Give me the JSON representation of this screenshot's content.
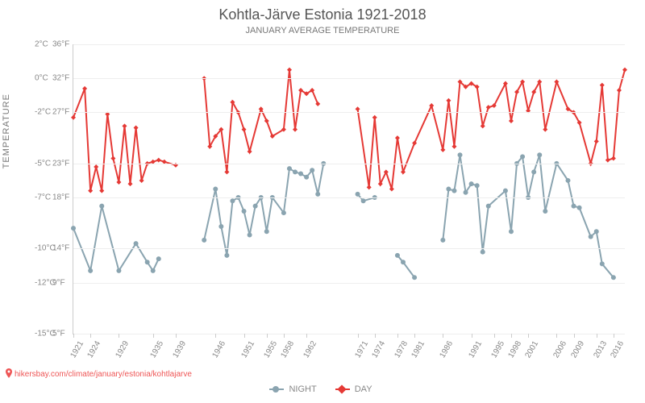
{
  "title": "Kohtla-Järve Estonia 1921-2018",
  "subtitle": "JANUARY AVERAGE TEMPERATURE",
  "y_axis_label": "TEMPERATURE",
  "footer_url": "hikersbay.com/climate/january/estonia/kohtlajarve",
  "colors": {
    "day": "#e53935",
    "night": "#8aa4b0",
    "grid": "#eeeeee",
    "axis": "#cccccc",
    "text": "#888888"
  },
  "y_axis": {
    "min_c": -15,
    "max_c": 2,
    "ticks": [
      {
        "c": "2°C",
        "f": "36°F",
        "val": 2
      },
      {
        "c": "0°C",
        "f": "32°F",
        "val": 0
      },
      {
        "c": "-2°C",
        "f": "27°F",
        "val": -2
      },
      {
        "c": "-5°C",
        "f": "23°F",
        "val": -5
      },
      {
        "c": "-7°C",
        "f": "18°F",
        "val": -7
      },
      {
        "c": "-10°C",
        "f": "14°F",
        "val": -10
      },
      {
        "c": "-12°C",
        "f": "9°F",
        "val": -12
      },
      {
        "c": "-15°C",
        "f": "5°F",
        "val": -15
      }
    ]
  },
  "x_axis": {
    "min_year": 1921,
    "max_year": 2018,
    "ticks": [
      1921,
      1924,
      1929,
      1935,
      1939,
      1946,
      1951,
      1955,
      1958,
      1962,
      1971,
      1974,
      1978,
      1981,
      1986,
      1991,
      1995,
      1998,
      2001,
      2006,
      2009,
      2013,
      2016
    ]
  },
  "legend": {
    "night_label": "NIGHT",
    "day_label": "DAY"
  },
  "series": {
    "day": [
      {
        "x": 1921,
        "y": -2.3
      },
      {
        "x": 1923,
        "y": -0.6
      },
      {
        "x": 1924,
        "y": -6.6
      },
      {
        "x": 1925,
        "y": -5.2
      },
      {
        "x": 1926,
        "y": -6.6
      },
      {
        "x": 1927,
        "y": -2.1
      },
      {
        "x": 1928,
        "y": -4.7
      },
      {
        "x": 1929,
        "y": -6.1
      },
      {
        "x": 1930,
        "y": -2.8
      },
      {
        "x": 1931,
        "y": -6.2
      },
      {
        "x": 1932,
        "y": -2.9
      },
      {
        "x": 1933,
        "y": -6.0
      },
      {
        "x": 1934,
        "y": -5.0
      },
      {
        "x": 1935,
        "y": -4.9
      },
      {
        "x": 1936,
        "y": -4.8
      },
      {
        "x": 1937,
        "y": -4.9
      },
      {
        "x": 1939,
        "y": -5.1
      },
      {
        "x": 1944,
        "y": 0.0
      },
      {
        "x": 1945,
        "y": -4.0
      },
      {
        "x": 1946,
        "y": -3.4
      },
      {
        "x": 1947,
        "y": -3.0
      },
      {
        "x": 1948,
        "y": -5.5
      },
      {
        "x": 1949,
        "y": -1.4
      },
      {
        "x": 1950,
        "y": -2.0
      },
      {
        "x": 1951,
        "y": -3.0
      },
      {
        "x": 1952,
        "y": -4.3
      },
      {
        "x": 1954,
        "y": -1.8
      },
      {
        "x": 1955,
        "y": -2.5
      },
      {
        "x": 1956,
        "y": -3.4
      },
      {
        "x": 1958,
        "y": -3.0
      },
      {
        "x": 1959,
        "y": 0.5
      },
      {
        "x": 1960,
        "y": -3.0
      },
      {
        "x": 1961,
        "y": -0.7
      },
      {
        "x": 1962,
        "y": -0.9
      },
      {
        "x": 1963,
        "y": -0.7
      },
      {
        "x": 1964,
        "y": -1.5
      },
      {
        "x": 1971,
        "y": -1.8
      },
      {
        "x": 1973,
        "y": -6.4
      },
      {
        "x": 1974,
        "y": -2.3
      },
      {
        "x": 1975,
        "y": -6.2
      },
      {
        "x": 1976,
        "y": -5.5
      },
      {
        "x": 1977,
        "y": -6.5
      },
      {
        "x": 1978,
        "y": -3.5
      },
      {
        "x": 1979,
        "y": -5.5
      },
      {
        "x": 1981,
        "y": -3.8
      },
      {
        "x": 1984,
        "y": -1.6
      },
      {
        "x": 1986,
        "y": -4.2
      },
      {
        "x": 1987,
        "y": -1.3
      },
      {
        "x": 1988,
        "y": -4.0
      },
      {
        "x": 1989,
        "y": -0.2
      },
      {
        "x": 1990,
        "y": -0.5
      },
      {
        "x": 1991,
        "y": -0.3
      },
      {
        "x": 1992,
        "y": -0.5
      },
      {
        "x": 1993,
        "y": -2.8
      },
      {
        "x": 1994,
        "y": -1.7
      },
      {
        "x": 1995,
        "y": -1.6
      },
      {
        "x": 1997,
        "y": -0.3
      },
      {
        "x": 1998,
        "y": -2.5
      },
      {
        "x": 1999,
        "y": -0.8
      },
      {
        "x": 2000,
        "y": -0.2
      },
      {
        "x": 2001,
        "y": -1.9
      },
      {
        "x": 2002,
        "y": -0.8
      },
      {
        "x": 2003,
        "y": -0.2
      },
      {
        "x": 2004,
        "y": -3.0
      },
      {
        "x": 2006,
        "y": -0.2
      },
      {
        "x": 2008,
        "y": -1.8
      },
      {
        "x": 2009,
        "y": -2.0
      },
      {
        "x": 2010,
        "y": -2.6
      },
      {
        "x": 2012,
        "y": -5.0
      },
      {
        "x": 2013,
        "y": -3.7
      },
      {
        "x": 2014,
        "y": -0.4
      },
      {
        "x": 2015,
        "y": -4.8
      },
      {
        "x": 2016,
        "y": -4.7
      },
      {
        "x": 2017,
        "y": -0.7
      },
      {
        "x": 2018,
        "y": 0.5
      }
    ],
    "night": [
      {
        "x": 1921,
        "y": -8.8
      },
      {
        "x": 1924,
        "y": -11.3
      },
      {
        "x": 1926,
        "y": -7.5
      },
      {
        "x": 1929,
        "y": -11.3
      },
      {
        "x": 1932,
        "y": -9.7
      },
      {
        "x": 1934,
        "y": -10.8
      },
      {
        "x": 1935,
        "y": -11.3
      },
      {
        "x": 1936,
        "y": -10.6
      },
      {
        "x": 1944,
        "y": -9.5
      },
      {
        "x": 1946,
        "y": -6.5
      },
      {
        "x": 1947,
        "y": -8.7
      },
      {
        "x": 1948,
        "y": -10.4
      },
      {
        "x": 1949,
        "y": -7.2
      },
      {
        "x": 1950,
        "y": -7.0
      },
      {
        "x": 1951,
        "y": -7.8
      },
      {
        "x": 1952,
        "y": -9.2
      },
      {
        "x": 1953,
        "y": -7.5
      },
      {
        "x": 1954,
        "y": -7.0
      },
      {
        "x": 1955,
        "y": -9.0
      },
      {
        "x": 1956,
        "y": -7.0
      },
      {
        "x": 1958,
        "y": -7.9
      },
      {
        "x": 1959,
        "y": -5.3
      },
      {
        "x": 1960,
        "y": -5.5
      },
      {
        "x": 1961,
        "y": -5.6
      },
      {
        "x": 1962,
        "y": -5.8
      },
      {
        "x": 1963,
        "y": -5.4
      },
      {
        "x": 1964,
        "y": -6.8
      },
      {
        "x": 1965,
        "y": -5.0
      },
      {
        "x": 1971,
        "y": -6.8
      },
      {
        "x": 1972,
        "y": -7.2
      },
      {
        "x": 1974,
        "y": -7.0
      },
      {
        "x": 1978,
        "y": -10.4
      },
      {
        "x": 1979,
        "y": -10.8
      },
      {
        "x": 1981,
        "y": -11.7
      },
      {
        "x": 1986,
        "y": -9.5
      },
      {
        "x": 1987,
        "y": -6.5
      },
      {
        "x": 1988,
        "y": -6.6
      },
      {
        "x": 1989,
        "y": -4.5
      },
      {
        "x": 1990,
        "y": -6.7
      },
      {
        "x": 1991,
        "y": -6.2
      },
      {
        "x": 1992,
        "y": -6.3
      },
      {
        "x": 1993,
        "y": -10.2
      },
      {
        "x": 1994,
        "y": -7.5
      },
      {
        "x": 1997,
        "y": -6.6
      },
      {
        "x": 1998,
        "y": -9.0
      },
      {
        "x": 1999,
        "y": -5.0
      },
      {
        "x": 2000,
        "y": -4.6
      },
      {
        "x": 2001,
        "y": -7.0
      },
      {
        "x": 2002,
        "y": -5.5
      },
      {
        "x": 2003,
        "y": -4.5
      },
      {
        "x": 2004,
        "y": -7.8
      },
      {
        "x": 2006,
        "y": -5.0
      },
      {
        "x": 2008,
        "y": -6.0
      },
      {
        "x": 2009,
        "y": -7.5
      },
      {
        "x": 2010,
        "y": -7.6
      },
      {
        "x": 2012,
        "y": -9.3
      },
      {
        "x": 2013,
        "y": -9.0
      },
      {
        "x": 2014,
        "y": -10.9
      },
      {
        "x": 2016,
        "y": -11.7
      }
    ]
  },
  "line_width": 2,
  "marker_radius": 3,
  "marker_style_day": "diamond",
  "marker_style_night": "circle"
}
